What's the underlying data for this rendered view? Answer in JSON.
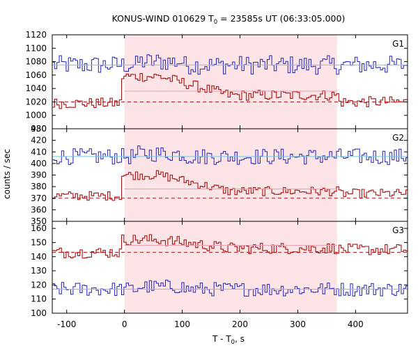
{
  "chart_data": {
    "type": "line",
    "title": "KONUS-WIND 010629 T",
    "title_sub": "0",
    "title_rest": " = 23585s UT (06:33:05.000)",
    "xlabel": "T - T",
    "xlabel_sub": "0",
    "xlabel_rest": ", s",
    "ylabel": "counts / sec",
    "xlim": [
      -125,
      490
    ],
    "x_ticks": [
      "-100",
      "0",
      "100",
      "200",
      "300",
      "400"
    ],
    "highlight_interval": [
      0,
      368
    ],
    "colors": {
      "highlight": "#fde4e6",
      "red_series": "#aa1111",
      "blue_series": "#2222bb",
      "bg_line": "#6ec8e6",
      "red_fit": "#aa1111"
    },
    "panels": [
      {
        "label": "G1",
        "ylim": [
          980,
          1120
        ],
        "y_ticks": [
          "980",
          "1000",
          "1020",
          "1040",
          "1060",
          "1080",
          "1100",
          "1120"
        ],
        "background_level": 1075,
        "red_background_level": 1020,
        "red_excess_level": 1036,
        "blue_mean": 1075,
        "blue_amp": 14,
        "red_pre": 1018,
        "red_peak": 1058,
        "red_tail": 1030,
        "red_amp": 8
      },
      {
        "label": "G2",
        "ylim": [
          350,
          430
        ],
        "y_ticks": [
          "350",
          "360",
          "370",
          "380",
          "390",
          "400",
          "410",
          "420",
          "430"
        ],
        "background_level": 406,
        "red_background_level": 370,
        "red_excess_level": 378,
        "blue_mean": 406,
        "blue_amp": 7,
        "red_pre": 372,
        "red_peak": 390,
        "red_tail": 376,
        "red_amp": 4
      },
      {
        "label": "G3",
        "ylim": [
          100,
          165
        ],
        "y_ticks": [
          "100",
          "110",
          "120",
          "130",
          "140",
          "150",
          "160"
        ],
        "background_level": 117,
        "red_background_level": 143,
        "red_excess_level": 148,
        "blue_mean": 117,
        "blue_amp": 5,
        "red_pre": 143,
        "red_peak": 152,
        "red_tail": 146,
        "red_amp": 4
      }
    ]
  }
}
